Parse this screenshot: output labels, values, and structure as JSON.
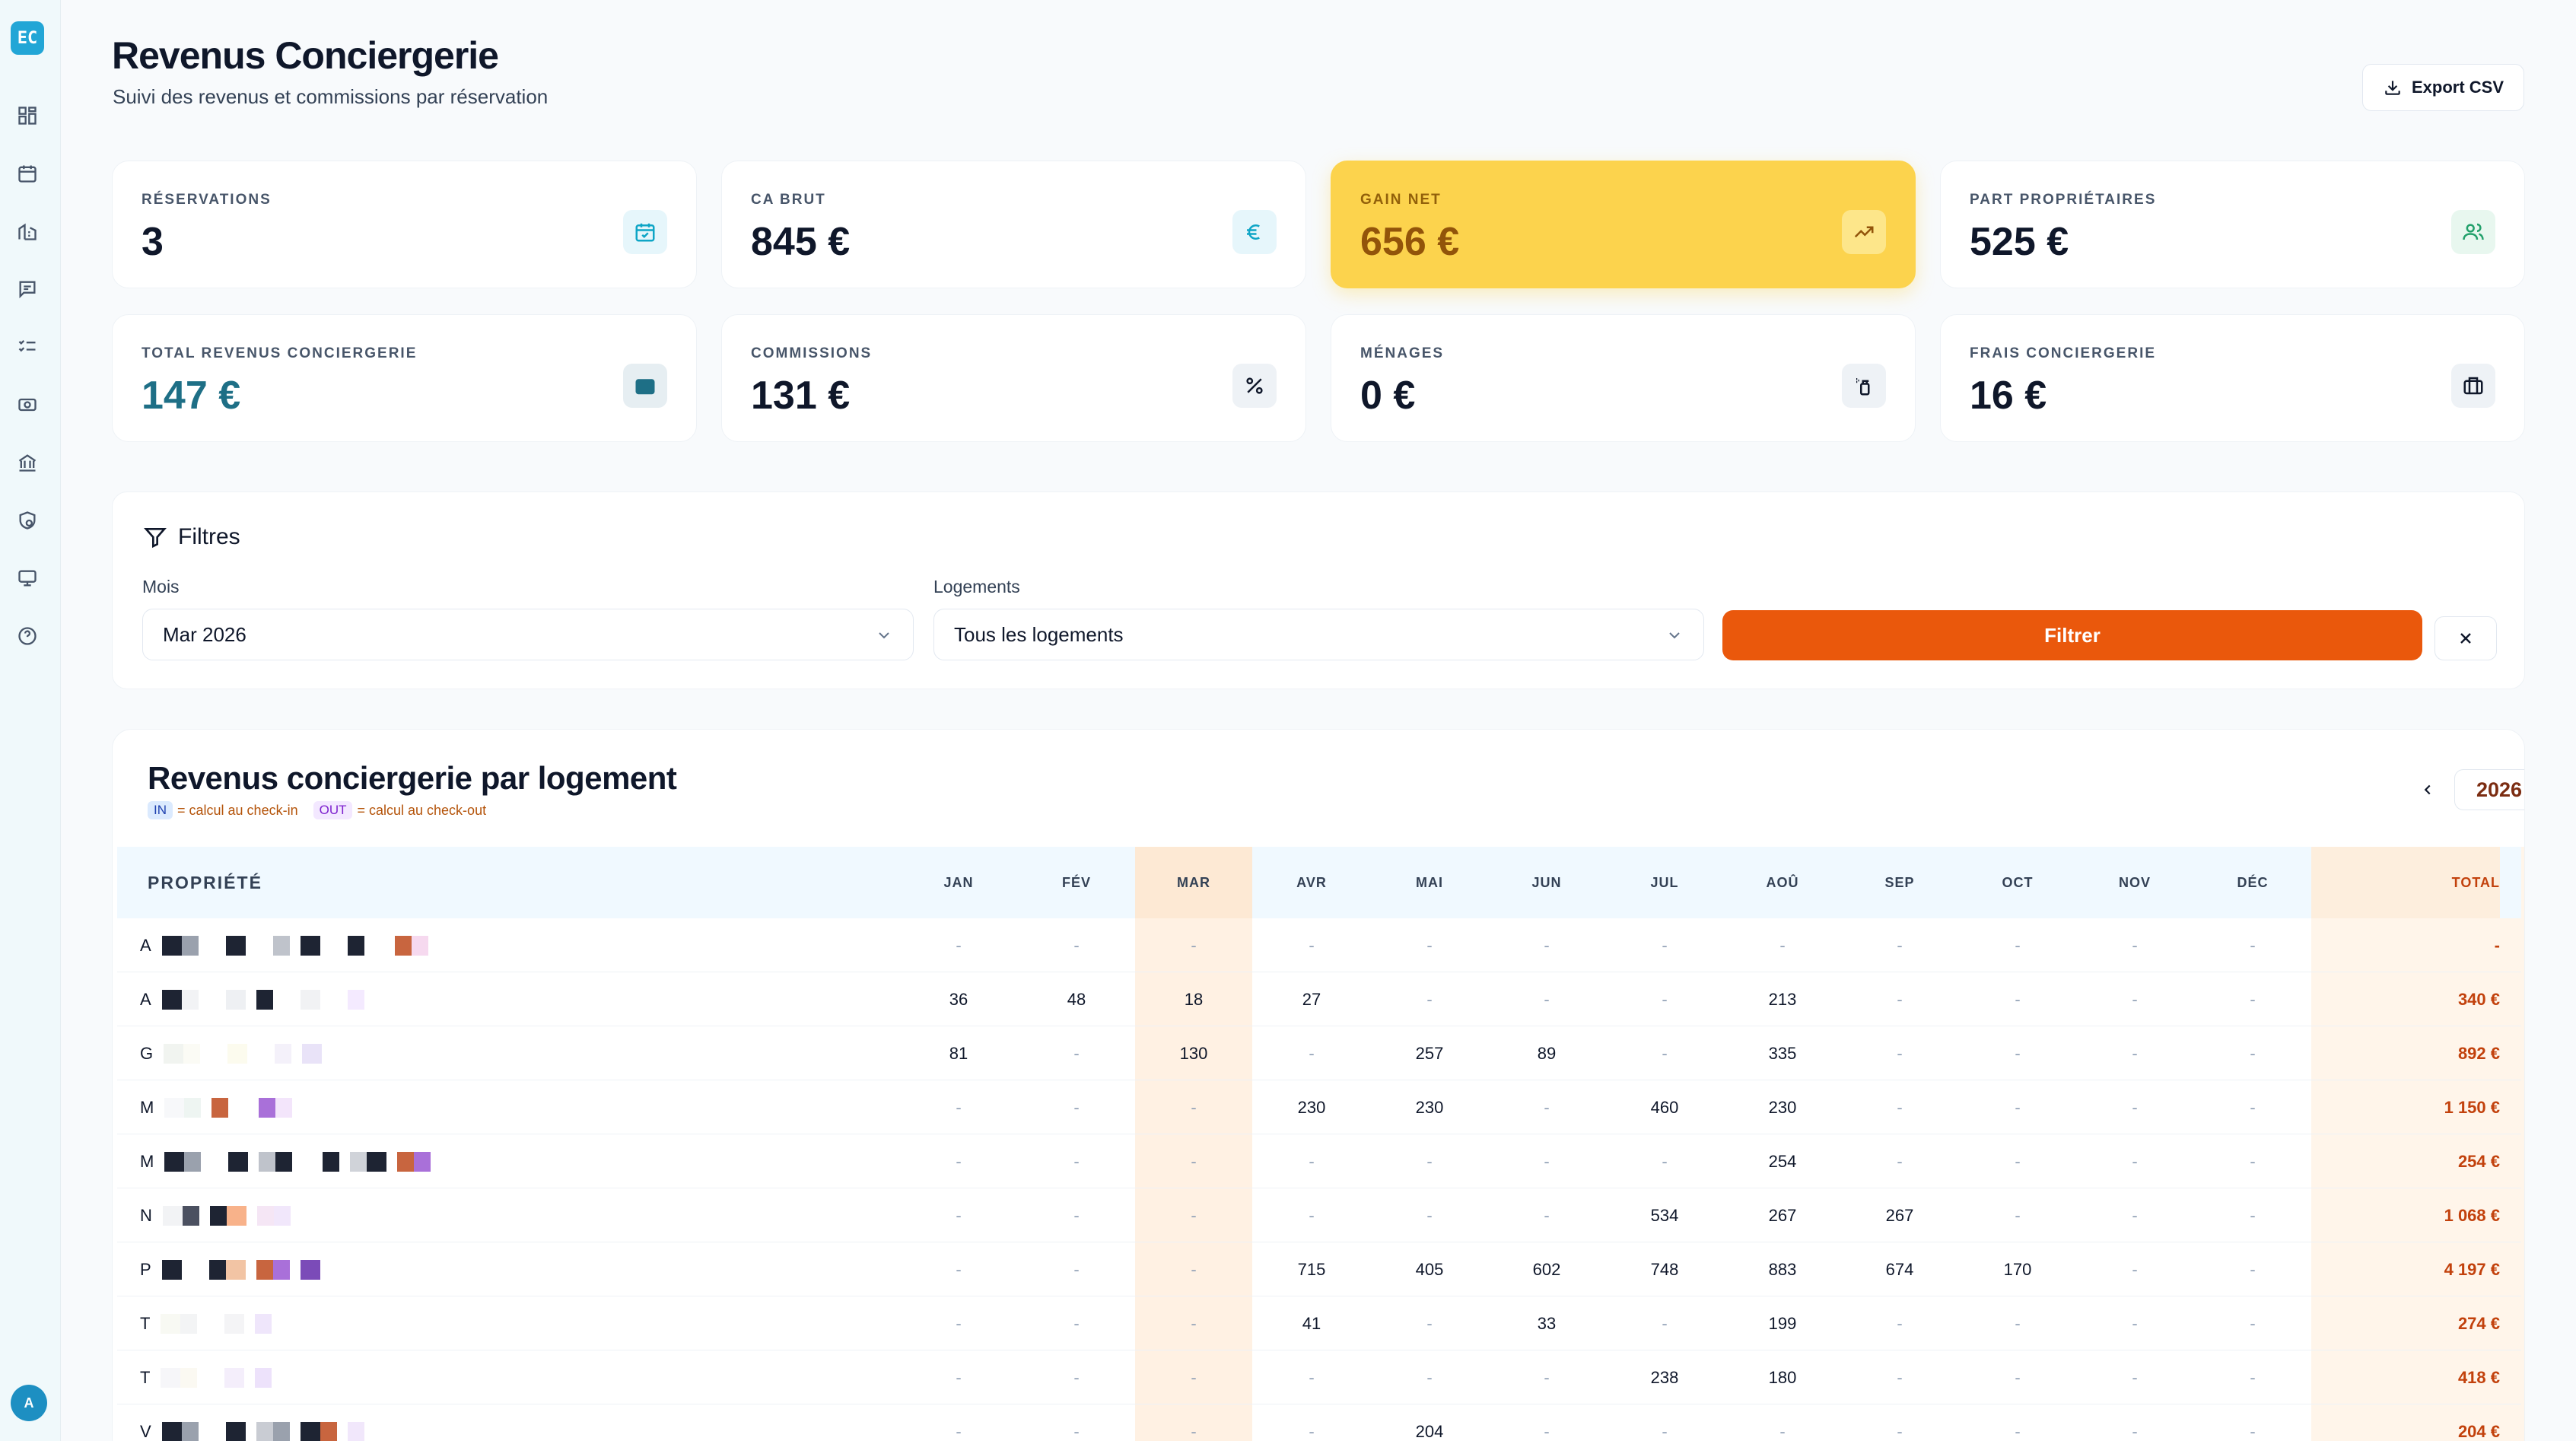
{
  "brand": {
    "logo_text": "EC",
    "user_initial": "A"
  },
  "nav_icons": [
    "dashboard-icon",
    "calendar-icon",
    "buildings-icon",
    "messages-icon",
    "tasks-icon",
    "revenue-icon",
    "bank-icon",
    "shield-icon",
    "monitor-icon",
    "help-icon"
  ],
  "header": {
    "title": "Revenus Conciergerie",
    "subtitle": "Suivi des revenus et commissions par réservation",
    "export_label": "Export CSV"
  },
  "stats": [
    {
      "label": "RÉSERVATIONS",
      "value": "3",
      "icon": "calendar-check-icon",
      "accent": "#0ea5c6"
    },
    {
      "label": "CA BRUT",
      "value": "845 €",
      "icon": "euro-icon",
      "accent": "#0ea5c6"
    },
    {
      "label": "GAIN NET",
      "value": "656 €",
      "icon": "trending-up-icon",
      "accent": "#92540a",
      "highlight": true
    },
    {
      "label": "PART PROPRIÉTAIRES",
      "value": "525 €",
      "icon": "users-icon",
      "accent": "#22a06b"
    },
    {
      "label": "TOTAL REVENUS CONCIERGERIE",
      "value": "147 €",
      "icon": "wallet-icon",
      "accent": "#1e6f86"
    },
    {
      "label": "COMMISSIONS",
      "value": "131 €",
      "icon": "percent-icon",
      "accent": "#0f172a"
    },
    {
      "label": "MÉNAGES",
      "value": "0 €",
      "icon": "spray-icon",
      "accent": "#0f172a"
    },
    {
      "label": "FRAIS CONCIERGERIE",
      "value": "16 €",
      "icon": "briefcase-icon",
      "accent": "#0f172a"
    }
  ],
  "filters": {
    "title": "Filtres",
    "month_label": "Mois",
    "month_value": "Mar 2026",
    "logements_label": "Logements",
    "logements_value": "Tous les logements",
    "submit_label": "Filtrer"
  },
  "table": {
    "title": "Revenus conciergerie par logement",
    "legend_in_tag": "IN",
    "legend_in_text": "= calcul au check-in",
    "legend_out_tag": "OUT",
    "legend_out_text": "= calcul au check-out",
    "year": "2026",
    "headers": [
      "PROPRIÉTÉ",
      "JAN",
      "FÉV",
      "MAR",
      "AVR",
      "MAI",
      "JUN",
      "JUL",
      "AOÛ",
      "SEP",
      "OCT",
      "NOV",
      "DÉC",
      "TOTAL"
    ],
    "rows": [
      {
        "prefix": "A",
        "values": [
          "-",
          "-",
          "-",
          "-",
          "-",
          "-",
          "-",
          "-",
          "-",
          "-",
          "-",
          "-"
        ],
        "total": "-"
      },
      {
        "prefix": "A",
        "values": [
          "36",
          "48",
          "18",
          "27",
          "-",
          "-",
          "-",
          "213",
          "-",
          "-",
          "-",
          "-"
        ],
        "total": "340 €"
      },
      {
        "prefix": "G",
        "values": [
          "81",
          "-",
          "130",
          "-",
          "257",
          "89",
          "-",
          "335",
          "-",
          "-",
          "-",
          "-"
        ],
        "total": "892 €"
      },
      {
        "prefix": "M",
        "values": [
          "-",
          "-",
          "-",
          "230",
          "230",
          "-",
          "460",
          "230",
          "-",
          "-",
          "-",
          "-"
        ],
        "total": "1 150 €"
      },
      {
        "prefix": "M",
        "values": [
          "-",
          "-",
          "-",
          "-",
          "-",
          "-",
          "-",
          "254",
          "-",
          "-",
          "-",
          "-"
        ],
        "total": "254 €"
      },
      {
        "prefix": "N",
        "values": [
          "-",
          "-",
          "-",
          "-",
          "-",
          "-",
          "534",
          "267",
          "267",
          "-",
          "-",
          "-"
        ],
        "total": "1 068 €"
      },
      {
        "prefix": "P",
        "values": [
          "-",
          "-",
          "-",
          "715",
          "405",
          "602",
          "748",
          "883",
          "674",
          "170",
          "-",
          "-"
        ],
        "total": "4 197 €"
      },
      {
        "prefix": "T",
        "values": [
          "-",
          "-",
          "-",
          "41",
          "-",
          "33",
          "-",
          "199",
          "-",
          "-",
          "-",
          "-"
        ],
        "total": "274 €"
      },
      {
        "prefix": "T",
        "values": [
          "-",
          "-",
          "-",
          "-",
          "-",
          "-",
          "238",
          "180",
          "-",
          "-",
          "-",
          "-"
        ],
        "total": "418 €"
      },
      {
        "prefix": "V",
        "values": [
          "-",
          "-",
          "-",
          "-",
          "204",
          "-",
          "-",
          "-",
          "-",
          "-",
          "-",
          "-"
        ],
        "total": "204 €"
      }
    ]
  }
}
